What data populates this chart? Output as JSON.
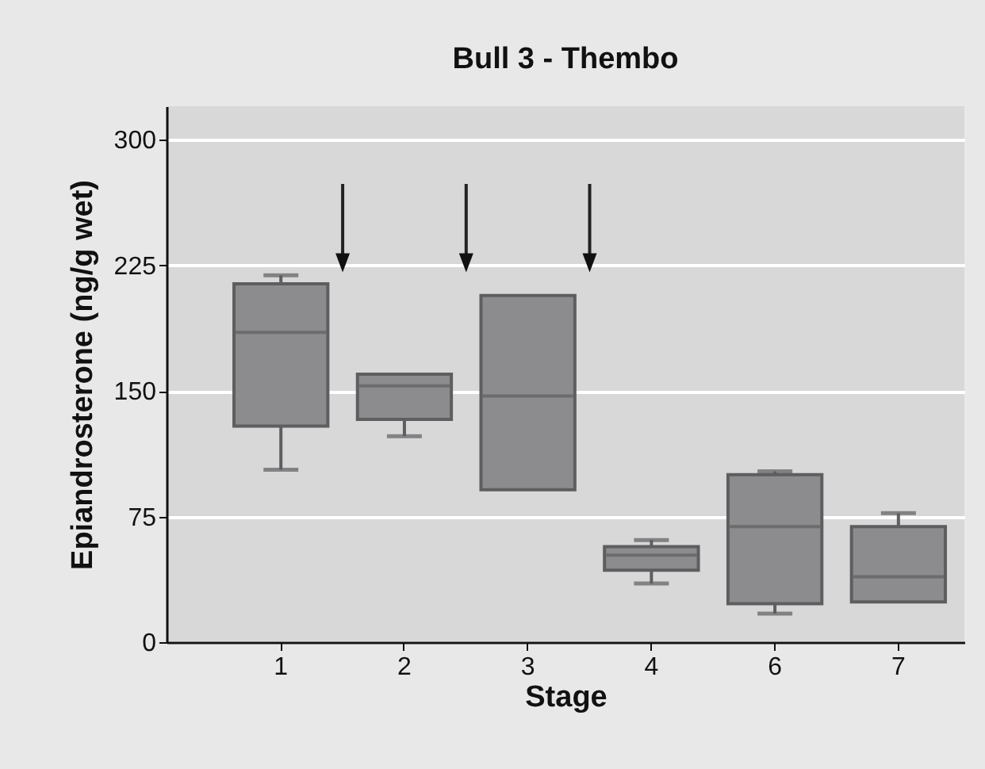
{
  "chart_data": {
    "type": "box",
    "title": "Bull 3 - Thembo",
    "xlabel": "Stage",
    "ylabel": "Epiandrosterone (ng/g wet)",
    "categories": [
      "1",
      "2",
      "3",
      "4",
      "6",
      "7"
    ],
    "boxes": [
      {
        "low": 103,
        "q1": 129,
        "median": 185,
        "q3": 214,
        "high": 219
      },
      {
        "low": 123,
        "q1": 133,
        "median": 153,
        "q3": 160,
        "high": 160
      },
      {
        "low": 91,
        "q1": 91,
        "median": 147,
        "q3": 207,
        "high": 207
      },
      {
        "low": 35,
        "q1": 43,
        "median": 52,
        "q3": 57,
        "high": 61
      },
      {
        "low": 17,
        "q1": 23,
        "median": 69,
        "q3": 100,
        "high": 102
      },
      {
        "low": 24,
        "q1": 24,
        "median": 39,
        "q3": 69,
        "high": 77
      }
    ],
    "color": "#8c8c8f",
    "ylim": [
      0,
      320
    ],
    "yticks": [
      0,
      75,
      150,
      225,
      300
    ],
    "grid": "y"
  }
}
